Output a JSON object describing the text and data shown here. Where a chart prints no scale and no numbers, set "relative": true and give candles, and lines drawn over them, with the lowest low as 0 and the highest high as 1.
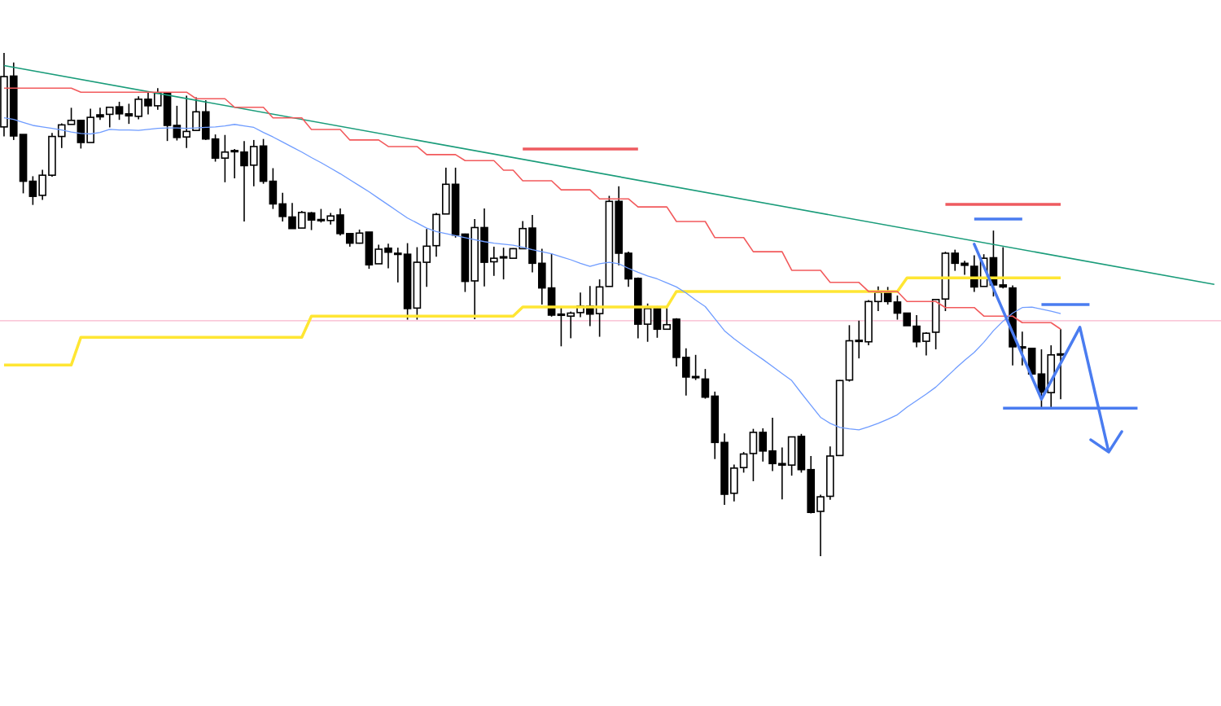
{
  "chart_data": {
    "type": "candlestick",
    "relative": true,
    "categories": [
      null,
      null,
      null,
      null,
      null,
      null,
      null,
      null,
      null,
      null,
      null,
      null,
      null,
      null,
      null,
      null,
      null,
      null,
      null,
      null,
      null,
      null,
      null,
      null,
      null,
      null,
      null,
      null,
      null,
      null,
      null,
      null,
      null,
      null,
      null,
      null,
      null,
      null,
      null,
      null,
      null,
      null,
      null,
      null,
      null,
      null,
      null,
      null,
      null,
      null,
      null,
      null,
      null,
      null,
      null,
      null,
      null,
      null,
      null,
      null,
      null,
      null,
      null,
      null,
      null,
      null,
      null,
      null,
      null,
      null,
      null,
      null,
      null,
      null,
      null,
      null,
      null,
      null,
      null,
      null,
      null,
      null,
      null,
      null,
      null,
      null,
      null,
      null,
      null,
      null,
      null,
      null,
      null,
      null,
      null,
      null,
      null,
      null,
      null,
      null,
      null,
      null,
      null,
      null,
      null,
      null,
      null,
      null,
      null,
      null,
      null,
      null,
      null,
      null,
      null,
      null,
      null,
      null,
      null,
      null,
      null,
      null,
      null,
      null,
      null,
      null,
      null
    ],
    "ohlc": [
      [
        0.853,
        1,
        0.834,
        0.953
      ],
      [
        0.954,
        0.981,
        0.827,
        0.835
      ],
      [
        0.838,
        0.838,
        0.721,
        0.745
      ],
      [
        0.745,
        0.755,
        0.698,
        0.715
      ],
      [
        0.717,
        0.768,
        0.708,
        0.757
      ],
      [
        0.757,
        0.841,
        0.754,
        0.834
      ],
      [
        0.834,
        0.86,
        0.811,
        0.857
      ],
      [
        0.858,
        0.891,
        0.858,
        0.866
      ],
      [
        0.866,
        0.866,
        0.81,
        0.822
      ],
      [
        0.822,
        0.889,
        0.822,
        0.872
      ],
      [
        0.877,
        0.891,
        0.867,
        0.873
      ],
      [
        0.878,
        0.892,
        0.852,
        0.892
      ],
      [
        0.893,
        0.903,
        0.867,
        0.879
      ],
      [
        0.879,
        0.899,
        0.859,
        0.875
      ],
      [
        0.874,
        0.914,
        0.868,
        0.908
      ],
      [
        0.908,
        0.924,
        0.878,
        0.895
      ],
      [
        0.895,
        0.93,
        0.887,
        0.92
      ],
      [
        0.92,
        0.92,
        0.825,
        0.856
      ],
      [
        0.856,
        0.895,
        0.826,
        0.832
      ],
      [
        0.833,
        0.915,
        0.811,
        0.844
      ],
      [
        0.846,
        0.912,
        0.846,
        0.883
      ],
      [
        0.883,
        0.906,
        0.827,
        0.829
      ],
      [
        0.829,
        0.838,
        0.784,
        0.791
      ],
      [
        0.791,
        0.837,
        0.743,
        0.803
      ],
      [
        0.806,
        0.809,
        0.751,
        0.804
      ],
      [
        0.803,
        0.825,
        0.665,
        0.776
      ],
      [
        0.777,
        0.827,
        0.735,
        0.814
      ],
      [
        0.815,
        0.829,
        0.74,
        0.745
      ],
      [
        0.745,
        0.771,
        0.69,
        0.7
      ],
      [
        0.7,
        0.722,
        0.665,
        0.675
      ],
      [
        0.674,
        0.702,
        0.651,
        0.651
      ],
      [
        0.652,
        0.686,
        0.652,
        0.683
      ],
      [
        0.682,
        0.684,
        0.648,
        0.668
      ],
      [
        0.669,
        0.69,
        0.663,
        0.668
      ],
      [
        0.667,
        0.682,
        0.659,
        0.676
      ],
      [
        0.678,
        0.691,
        0.637,
        0.641
      ],
      [
        0.641,
        0.641,
        0.615,
        0.622
      ],
      [
        0.622,
        0.649,
        0.621,
        0.642
      ],
      [
        0.644,
        0.644,
        0.571,
        0.579
      ],
      [
        0.581,
        0.619,
        0.581,
        0.61
      ],
      [
        0.612,
        0.621,
        0.572,
        0.604
      ],
      [
        0.602,
        0.613,
        0.544,
        0.6
      ],
      [
        0.6,
        0.622,
        0.47,
        0.492
      ],
      [
        0.493,
        0.614,
        0.47,
        0.584
      ],
      [
        0.584,
        0.65,
        0.535,
        0.616
      ],
      [
        0.617,
        0.682,
        0.595,
        0.679
      ],
      [
        0.68,
        0.772,
        0.68,
        0.739
      ],
      [
        0.739,
        0.772,
        0.633,
        0.638
      ],
      [
        0.64,
        0.641,
        0.525,
        0.546
      ],
      [
        0.547,
        0.67,
        0.471,
        0.653
      ],
      [
        0.653,
        0.691,
        0.536,
        0.584
      ],
      [
        0.585,
        0.615,
        0.557,
        0.592
      ],
      [
        0.595,
        0.613,
        0.55,
        0.594
      ],
      [
        0.592,
        0.612,
        0.592,
        0.611
      ],
      [
        0.611,
        0.666,
        0.611,
        0.651
      ],
      [
        0.652,
        0.678,
        0.564,
        0.582
      ],
      [
        0.582,
        0.611,
        0.5,
        0.533
      ],
      [
        0.533,
        0.602,
        0.476,
        0.479
      ],
      [
        0.481,
        0.496,
        0.417,
        0.479
      ],
      [
        0.477,
        0.486,
        0.433,
        0.483
      ],
      [
        0.484,
        0.524,
        0.475,
        0.497
      ],
      [
        0.497,
        0.537,
        0.457,
        0.481
      ],
      [
        0.482,
        0.55,
        0.436,
        0.535
      ],
      [
        0.536,
        0.716,
        0.536,
        0.705
      ],
      [
        0.705,
        0.735,
        0.578,
        0.602
      ],
      [
        0.602,
        0.605,
        0.535,
        0.551
      ],
      [
        0.552,
        0.554,
        0.433,
        0.461
      ],
      [
        0.461,
        0.502,
        0.426,
        0.492
      ],
      [
        0.492,
        0.497,
        0.434,
        0.451
      ],
      [
        0.451,
        0.493,
        0.451,
        0.46
      ],
      [
        0.471,
        0.473,
        0.377,
        0.395
      ],
      [
        0.395,
        0.413,
        0.319,
        0.356
      ],
      [
        0.357,
        0.4,
        0.35,
        0.356
      ],
      [
        0.352,
        0.372,
        0.313,
        0.316
      ],
      [
        0.318,
        0.327,
        0.193,
        0.226
      ],
      [
        0.226,
        0.244,
        0.102,
        0.123
      ],
      [
        0.125,
        0.182,
        0.109,
        0.175
      ],
      [
        0.176,
        0.207,
        0.166,
        0.203
      ],
      [
        0.204,
        0.253,
        0.149,
        0.246
      ],
      [
        0.246,
        0.254,
        0.188,
        0.209
      ],
      [
        0.209,
        0.275,
        0.169,
        0.184
      ],
      [
        0.184,
        0.216,
        0.113,
        0.181
      ],
      [
        0.181,
        0.237,
        0.16,
        0.237
      ],
      [
        0.238,
        0.243,
        0.166,
        0.172
      ],
      [
        0.172,
        0.199,
        0.085,
        0.087
      ],
      [
        0.089,
        0.122,
        0,
        0.118
      ],
      [
        0.119,
        0.218,
        0.112,
        0.199
      ],
      [
        0.2,
        0.35,
        0.2,
        0.349
      ],
      [
        0.35,
        0.459,
        0.347,
        0.428
      ],
      [
        0.428,
        0.468,
        0.393,
        0.429
      ],
      [
        0.426,
        0.509,
        0.419,
        0.506
      ],
      [
        0.506,
        0.536,
        0.487,
        0.524
      ],
      [
        0.524,
        0.535,
        0.5,
        0.506
      ],
      [
        0.505,
        0.518,
        0.47,
        0.483
      ],
      [
        0.483,
        0.483,
        0.458,
        0.458
      ],
      [
        0.457,
        0.479,
        0.415,
        0.426
      ],
      [
        0.427,
        0.445,
        0.399,
        0.443
      ],
      [
        0.445,
        0.51,
        0.411,
        0.51
      ],
      [
        0.511,
        0.605,
        0.487,
        0.602
      ],
      [
        0.602,
        0.609,
        0.567,
        0.582
      ],
      [
        0.582,
        0.587,
        0.559,
        0.578
      ],
      [
        0.576,
        0.598,
        0.525,
        0.535
      ],
      [
        0.536,
        0.6,
        0.536,
        0.592
      ],
      [
        0.593,
        0.647,
        0.516,
        0.539
      ],
      [
        0.539,
        0.614,
        0.532,
        0.535
      ],
      [
        0.533,
        0.538,
        0.379,
        0.416
      ],
      [
        0.416,
        0.446,
        0.379,
        0.414
      ],
      [
        0.413,
        0.413,
        0.361,
        0.362
      ],
      [
        0.362,
        0.411,
        0.296,
        0.326
      ],
      [
        0.325,
        0.419,
        0.296,
        0.4
      ],
      [
        0.402,
        0.451,
        0.312,
        0.4
      ],
      null,
      null,
      null,
      null,
      null,
      null,
      null,
      null,
      null,
      null,
      null,
      null,
      null,
      null,
      null,
      null
    ],
    "series": [
      {
        "type": "line",
        "color": "#1a9c7a",
        "values": [
          0.975,
          null,
          null,
          null,
          null,
          null,
          null,
          null,
          null,
          null,
          null,
          null,
          null,
          null,
          null,
          null,
          null,
          null,
          null,
          null,
          null,
          null,
          null,
          null,
          null,
          null,
          null,
          null,
          null,
          null,
          null,
          null,
          null,
          null,
          null,
          null,
          null,
          null,
          null,
          null,
          null,
          null,
          null,
          null,
          null,
          null,
          null,
          null,
          null,
          null,
          null,
          null,
          null,
          null,
          null,
          null,
          null,
          null,
          null,
          null,
          null,
          null,
          null,
          null,
          null,
          null,
          null,
          null,
          null,
          null,
          null,
          null,
          null,
          null,
          null,
          null,
          null,
          null,
          null,
          null,
          null,
          null,
          null,
          null,
          null,
          null,
          null,
          null,
          null,
          null,
          null,
          null,
          null,
          null,
          null,
          null,
          null,
          null,
          null,
          null,
          null,
          null,
          null,
          null,
          null,
          null,
          null,
          null,
          null,
          null,
          null,
          null,
          null,
          null,
          null,
          null,
          null,
          null,
          null,
          null,
          null,
          null,
          null,
          null,
          null,
          null,
          0.54
        ]
      },
      {
        "type": "line",
        "color": "#ffe633",
        "values": [
          0.38,
          0.38,
          0.38,
          0.38,
          0.38,
          0.38,
          0.38,
          0.38,
          0.435,
          0.435,
          0.435,
          0.435,
          0.435,
          0.435,
          0.435,
          0.435,
          0.435,
          0.435,
          0.435,
          0.435,
          0.435,
          0.435,
          0.435,
          0.435,
          0.435,
          0.435,
          0.435,
          0.435,
          0.435,
          0.435,
          0.435,
          0.435,
          0.477,
          0.477,
          0.477,
          0.477,
          0.477,
          0.477,
          0.477,
          0.477,
          0.477,
          0.477,
          0.477,
          0.477,
          0.477,
          0.477,
          0.477,
          0.477,
          0.477,
          0.477,
          0.477,
          0.477,
          0.477,
          0.477,
          0.495,
          0.495,
          0.495,
          0.495,
          0.495,
          0.495,
          0.495,
          0.495,
          0.495,
          0.495,
          0.495,
          0.495,
          0.495,
          0.495,
          0.495,
          0.495,
          0.526,
          0.526,
          0.526,
          0.526,
          0.526,
          0.526,
          0.526,
          0.526,
          0.526,
          0.526,
          0.526,
          0.526,
          0.526,
          0.526,
          0.526,
          0.526,
          0.526,
          0.526,
          0.526,
          0.526,
          0.526,
          0.526,
          0.526,
          0.526,
          0.553,
          0.553,
          0.553,
          0.553,
          0.553,
          0.553,
          0.553,
          0.553,
          0.553,
          0.553,
          0.553,
          0.553,
          0.553,
          0.553,
          0.553,
          0.553,
          0.553,
          null,
          null,
          null,
          null,
          null,
          null,
          null,
          null,
          null,
          null,
          null,
          null,
          null,
          null,
          null,
          null
        ]
      },
      {
        "type": "line",
        "color": "#f25a5c",
        "values": [
          0.93,
          0.93,
          0.93,
          0.93,
          0.93,
          0.93,
          0.93,
          0.93,
          0.922,
          0.922,
          0.922,
          0.922,
          0.922,
          0.922,
          0.922,
          0.922,
          0.922,
          0.922,
          0.922,
          0.922,
          0.909,
          0.909,
          0.909,
          0.909,
          0.892,
          0.892,
          0.892,
          0.892,
          0.871,
          0.871,
          0.871,
          0.871,
          0.848,
          0.848,
          0.848,
          0.848,
          0.827,
          0.827,
          0.827,
          0.827,
          0.814,
          0.814,
          0.814,
          0.814,
          0.798,
          0.798,
          0.798,
          0.798,
          0.786,
          0.786,
          0.786,
          0.786,
          0.767,
          0.767,
          0.746,
          0.746,
          0.746,
          0.746,
          0.728,
          0.728,
          0.728,
          0.728,
          0.71,
          0.71,
          0.71,
          0.71,
          0.694,
          0.694,
          0.694,
          0.694,
          0.665,
          0.665,
          0.665,
          0.665,
          0.633,
          0.633,
          0.633,
          0.633,
          0.605,
          0.605,
          0.605,
          0.605,
          0.568,
          0.568,
          0.568,
          0.568,
          0.544,
          0.544,
          0.544,
          0.544,
          0.526,
          0.526,
          0.526,
          0.526,
          0.506,
          0.506,
          0.506,
          0.506,
          0.494,
          0.494,
          0.494,
          0.494,
          0.477,
          0.477,
          0.477,
          0.477,
          0.464,
          0.464,
          0.464,
          0.464,
          0.451,
          null,
          null,
          null,
          null,
          null,
          null,
          null,
          null,
          null,
          null,
          null,
          null,
          null,
          null,
          null,
          null
        ]
      },
      {
        "type": "line",
        "color": "#6f9cff",
        "values": [
          0.871,
          0.868,
          0.862,
          0.856,
          0.853,
          0.85,
          0.847,
          0.843,
          0.84,
          0.839,
          0.842,
          0.848,
          0.847,
          0.847,
          0.846,
          0.848,
          0.85,
          0.851,
          0.851,
          0.85,
          0.851,
          0.852,
          0.853,
          0.855,
          0.858,
          0.855,
          0.852,
          0.842,
          0.833,
          0.823,
          0.813,
          0.803,
          0.792,
          0.782,
          0.771,
          0.76,
          0.748,
          0.736,
          0.724,
          0.711,
          0.698,
          0.685,
          0.672,
          0.662,
          0.652,
          0.645,
          0.641,
          0.637,
          0.633,
          0.629,
          0.625,
          0.622,
          0.62,
          0.618,
          0.614,
          0.609,
          0.605,
          0.601,
          0.595,
          0.589,
          0.582,
          0.576,
          0.581,
          0.584,
          0.581,
          0.572,
          0.564,
          0.557,
          0.551,
          0.543,
          0.535,
          0.523,
          0.509,
          0.496,
          0.472,
          0.448,
          0.432,
          0.418,
          0.404,
          0.391,
          0.377,
          0.363,
          0.349,
          0.324,
          0.3,
          0.276,
          0.264,
          0.256,
          0.253,
          0.251,
          0.257,
          0.264,
          0.272,
          0.281,
          0.296,
          0.309,
          0.322,
          0.336,
          0.354,
          0.372,
          0.389,
          0.405,
          0.425,
          0.448,
          0.467,
          0.483,
          0.494,
          0.495,
          0.491,
          0.487,
          0.482,
          null,
          null,
          null,
          null,
          null,
          null,
          null,
          null,
          null,
          null,
          null,
          null,
          null,
          null,
          null,
          null
        ]
      },
      {
        "type": "line",
        "color": "#ee5a5f",
        "values": [
          null,
          null,
          null,
          null,
          null,
          null,
          null,
          null,
          null,
          null,
          null,
          null,
          null,
          null,
          null,
          null,
          null,
          null,
          null,
          null,
          null,
          null,
          null,
          null,
          null,
          null,
          null,
          null,
          null,
          null,
          null,
          null,
          null,
          null,
          null,
          null,
          null,
          null,
          null,
          null,
          null,
          null,
          null,
          null,
          null,
          null,
          null,
          null,
          null,
          null,
          null,
          null,
          null,
          null,
          0.809,
          0.809,
          0.809,
          0.809,
          0.809,
          0.809,
          0.809,
          0.809,
          0.809,
          0.809,
          0.809,
          0.809,
          0.809,
          null,
          null,
          null,
          null,
          null,
          null,
          null,
          null,
          null,
          null,
          null,
          null,
          null,
          null,
          null,
          null,
          null,
          null,
          null,
          null,
          null,
          null,
          null,
          null,
          null,
          null,
          null,
          null,
          null,
          null,
          null,
          null,
          null,
          null,
          null,
          null,
          null,
          null,
          null,
          null,
          null,
          null,
          null,
          null,
          null,
          null,
          null,
          null,
          null,
          null,
          null,
          null,
          null,
          null,
          null,
          null,
          null,
          null,
          null,
          null
        ]
      },
      {
        "type": "line",
        "color": "#ee5a5f",
        "values": [
          null,
          null,
          null,
          null,
          null,
          null,
          null,
          null,
          null,
          null,
          null,
          null,
          null,
          null,
          null,
          null,
          null,
          null,
          null,
          null,
          null,
          null,
          null,
          null,
          null,
          null,
          null,
          null,
          null,
          null,
          null,
          null,
          null,
          null,
          null,
          null,
          null,
          null,
          null,
          null,
          null,
          null,
          null,
          null,
          null,
          null,
          null,
          null,
          null,
          null,
          null,
          null,
          null,
          null,
          null,
          null,
          null,
          null,
          null,
          null,
          null,
          null,
          null,
          null,
          null,
          null,
          null,
          null,
          null,
          null,
          null,
          null,
          null,
          null,
          null,
          null,
          null,
          null,
          null,
          null,
          null,
          null,
          null,
          null,
          null,
          null,
          null,
          null,
          null,
          null,
          null,
          null,
          null,
          null,
          null,
          null,
          null,
          null,
          0.699,
          0.699,
          0.699,
          0.699,
          0.699,
          0.699,
          0.699,
          0.699,
          0.699,
          0.699,
          0.699,
          0.699,
          0.699,
          null,
          null,
          null,
          null,
          null,
          null,
          null,
          null,
          null,
          null,
          null,
          null,
          null,
          null,
          null,
          null
        ]
      },
      {
        "type": "line",
        "color": "#4a7cf0",
        "values": [
          null,
          null,
          null,
          null,
          null,
          null,
          null,
          null,
          null,
          null,
          null,
          null,
          null,
          null,
          null,
          null,
          null,
          null,
          null,
          null,
          null,
          null,
          null,
          null,
          null,
          null,
          null,
          null,
          null,
          null,
          null,
          null,
          null,
          null,
          null,
          null,
          null,
          null,
          null,
          null,
          null,
          null,
          null,
          null,
          null,
          null,
          null,
          null,
          null,
          null,
          null,
          null,
          null,
          null,
          null,
          null,
          null,
          null,
          null,
          null,
          null,
          null,
          null,
          null,
          null,
          null,
          null,
          null,
          null,
          null,
          null,
          null,
          null,
          null,
          null,
          null,
          null,
          null,
          null,
          null,
          null,
          null,
          null,
          null,
          null,
          null,
          null,
          null,
          null,
          null,
          null,
          null,
          null,
          null,
          null,
          null,
          null,
          null,
          null,
          null,
          null,
          0.67,
          0.67,
          0.67,
          0.67,
          0.67,
          0.67,
          null,
          null,
          null,
          null,
          null,
          null,
          null,
          null,
          null,
          null,
          null,
          null,
          null,
          null,
          null,
          null,
          null,
          null,
          null,
          null
        ]
      },
      {
        "type": "line",
        "color": "#4a7cf0",
        "values": [
          null,
          null,
          null,
          null,
          null,
          null,
          null,
          null,
          null,
          null,
          null,
          null,
          null,
          null,
          null,
          null,
          null,
          null,
          null,
          null,
          null,
          null,
          null,
          null,
          null,
          null,
          null,
          null,
          null,
          null,
          null,
          null,
          null,
          null,
          null,
          null,
          null,
          null,
          null,
          null,
          null,
          null,
          null,
          null,
          null,
          null,
          null,
          null,
          null,
          null,
          null,
          null,
          null,
          null,
          null,
          null,
          null,
          null,
          null,
          null,
          null,
          null,
          null,
          null,
          null,
          null,
          null,
          null,
          null,
          null,
          null,
          null,
          null,
          null,
          null,
          null,
          null,
          null,
          null,
          null,
          null,
          null,
          null,
          null,
          null,
          null,
          null,
          null,
          null,
          null,
          null,
          null,
          null,
          null,
          null,
          null,
          null,
          null,
          null,
          null,
          null,
          null,
          null,
          null,
          null,
          null,
          null,
          null,
          0.5,
          0.5,
          0.5,
          0.5,
          0.5,
          0.5,
          null,
          null,
          null,
          null,
          null,
          null,
          null,
          null,
          null,
          null,
          null,
          null,
          null
        ]
      },
      {
        "type": "line",
        "color": "#4a7cf0",
        "values": [
          null,
          null,
          null,
          null,
          null,
          null,
          null,
          null,
          null,
          null,
          null,
          null,
          null,
          null,
          null,
          null,
          null,
          null,
          null,
          null,
          null,
          null,
          null,
          null,
          null,
          null,
          null,
          null,
          null,
          null,
          null,
          null,
          null,
          null,
          null,
          null,
          null,
          null,
          null,
          null,
          null,
          null,
          null,
          null,
          null,
          null,
          null,
          null,
          null,
          null,
          null,
          null,
          null,
          null,
          null,
          null,
          null,
          null,
          null,
          null,
          null,
          null,
          null,
          null,
          null,
          null,
          null,
          null,
          null,
          null,
          null,
          null,
          null,
          null,
          null,
          null,
          null,
          null,
          null,
          null,
          null,
          null,
          null,
          null,
          null,
          null,
          null,
          null,
          null,
          null,
          null,
          null,
          null,
          null,
          null,
          null,
          null,
          null,
          null,
          null,
          null,
          null,
          null,
          null,
          0.294,
          0.294,
          0.294,
          0.294,
          0.294,
          0.294,
          0.294,
          0.294,
          0.294,
          0.294,
          0.294,
          0.294,
          0.294,
          0.294,
          0.294,
          null,
          null,
          null,
          null,
          null,
          null,
          null,
          null
        ]
      }
    ],
    "ref_lines": [
      {
        "axis": "y",
        "value": 0.468,
        "color": "#f9b6cc"
      }
    ]
  }
}
